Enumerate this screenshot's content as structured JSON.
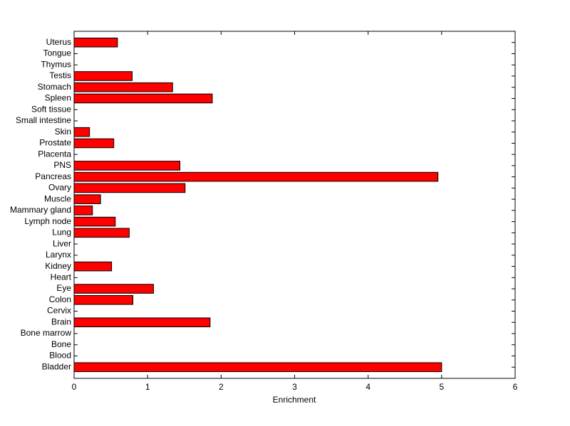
{
  "chart_data": {
    "type": "barh",
    "xlabel": "Enrichment",
    "categories": [
      "Bladder",
      "Blood",
      "Bone",
      "Bone marrow",
      "Brain",
      "Cervix",
      "Colon",
      "Eye",
      "Heart",
      "Kidney",
      "Larynx",
      "Liver",
      "Lung",
      "Lymph node",
      "Mammary gland",
      "Muscle",
      "Ovary",
      "Pancreas",
      "PNS",
      "Placenta",
      "Prostate",
      "Skin",
      "Small intestine",
      "Soft tissue",
      "Spleen",
      "Stomach",
      "Testis",
      "Thymus",
      "Tongue",
      "Uterus"
    ],
    "values": [
      5.0,
      0,
      0,
      0,
      1.85,
      0,
      0.8,
      1.08,
      0,
      0.51,
      0,
      0,
      0.75,
      0.56,
      0.25,
      0.36,
      1.51,
      4.95,
      1.44,
      0,
      0.54,
      0.21,
      0,
      0,
      1.88,
      1.34,
      0.79,
      0,
      0,
      0.59
    ],
    "color": "#ff0000",
    "xlim": [
      0,
      6
    ],
    "xticks": [
      0,
      1,
      2,
      3,
      4,
      5,
      6
    ],
    "grid": false
  }
}
